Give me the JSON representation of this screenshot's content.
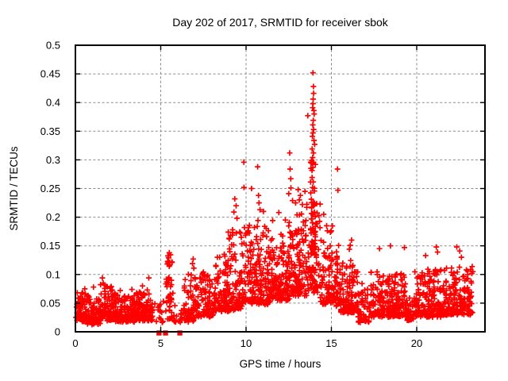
{
  "title": "Day 202 of 2017, SRMTID for receiver sbok",
  "chart_data": {
    "type": "scatter",
    "title": "Day 202 of 2017, SRMTID for receiver sbok",
    "xlabel": "GPS time / hours",
    "ylabel": "SRMTID / TECUs",
    "xlim": [
      0,
      24
    ],
    "ylim": [
      0,
      0.5
    ],
    "xticks": [
      0,
      5,
      10,
      15,
      20
    ],
    "xtick_labels": [
      "0",
      "5",
      "10",
      "15",
      "20"
    ],
    "yticks": [
      0,
      0.05,
      0.1,
      0.15,
      0.2,
      0.25,
      0.3,
      0.35,
      0.4,
      0.45,
      0.5
    ],
    "ytick_labels": [
      "0",
      "0.05",
      "0.1",
      "0.15",
      "0.2",
      "0.25",
      "0.3",
      "0.35",
      "0.4",
      "0.45",
      "0.5"
    ],
    "grid": true,
    "legend": "none",
    "marker": "plus",
    "marker_color": "#ff0000",
    "grid_color": "#8c8c8c",
    "border_color": "#000000",
    "seed": 1234567,
    "notable_points": [
      [
        13.92,
        0.452
      ],
      [
        13.95,
        0.428
      ],
      [
        13.96,
        0.416
      ],
      [
        13.93,
        0.406
      ],
      [
        13.92,
        0.398
      ],
      [
        13.9,
        0.391
      ],
      [
        13.97,
        0.386
      ],
      [
        13.99,
        0.38
      ],
      [
        13.62,
        0.377
      ],
      [
        13.94,
        0.369
      ],
      [
        13.91,
        0.361
      ],
      [
        13.96,
        0.353
      ],
      [
        13.92,
        0.347
      ],
      [
        13.89,
        0.341
      ],
      [
        13.98,
        0.334
      ],
      [
        14.02,
        0.327
      ],
      [
        13.87,
        0.319
      ],
      [
        13.95,
        0.312
      ],
      [
        13.9,
        0.304
      ],
      [
        13.85,
        0.299
      ],
      [
        14.06,
        0.292
      ],
      [
        13.8,
        0.285
      ],
      [
        9.87,
        0.296
      ],
      [
        9.88,
        0.252
      ],
      [
        10.68,
        0.288
      ],
      [
        10.73,
        0.238
      ],
      [
        10.76,
        0.225
      ],
      [
        10.82,
        0.213
      ],
      [
        10.7,
        0.194
      ],
      [
        11.02,
        0.21
      ],
      [
        12.56,
        0.312
      ],
      [
        12.58,
        0.284
      ],
      [
        12.62,
        0.267
      ],
      [
        12.63,
        0.251
      ],
      [
        12.5,
        0.241
      ],
      [
        12.72,
        0.229
      ],
      [
        15.36,
        0.284
      ],
      [
        15.38,
        0.247
      ],
      [
        9.34,
        0.232
      ],
      [
        9.42,
        0.22
      ],
      [
        9.29,
        0.209
      ],
      [
        9.47,
        0.198
      ],
      [
        13.05,
        0.248
      ],
      [
        13.12,
        0.23
      ],
      [
        13.18,
        0.238
      ],
      [
        13.3,
        0.222
      ],
      [
        13.45,
        0.245
      ],
      [
        12.9,
        0.225
      ],
      [
        11.92,
        0.208
      ],
      [
        11.56,
        0.194
      ],
      [
        10.32,
        0.25
      ],
      [
        12.3,
        0.195
      ],
      [
        14.55,
        0.205
      ],
      [
        14.72,
        0.185
      ],
      [
        1.58,
        0.094
      ],
      [
        1.63,
        0.085
      ],
      [
        2.1,
        0.079
      ],
      [
        4.3,
        0.094
      ],
      [
        3.93,
        0.08
      ],
      [
        0.55,
        0.075
      ],
      [
        1.06,
        0.078
      ],
      [
        2.63,
        0.072
      ],
      [
        3.31,
        0.074
      ],
      [
        5.5,
        0.138
      ],
      [
        5.46,
        0.129
      ],
      [
        5.53,
        0.121
      ],
      [
        6.9,
        0.127
      ],
      [
        6.86,
        0.119
      ],
      [
        6.94,
        0.111
      ],
      [
        7.46,
        0.102
      ],
      [
        7.76,
        0.098
      ],
      [
        8.32,
        0.13
      ],
      [
        8.76,
        0.132
      ],
      [
        9.02,
        0.162
      ],
      [
        9.21,
        0.178
      ],
      [
        8.96,
        0.174
      ],
      [
        16.18,
        0.16
      ],
      [
        16.1,
        0.151
      ],
      [
        16.05,
        0.144
      ],
      [
        17.82,
        0.145
      ],
      [
        18.46,
        0.15
      ],
      [
        19.28,
        0.147
      ],
      [
        20.52,
        0.133
      ],
      [
        21.15,
        0.148
      ],
      [
        21.22,
        0.139
      ],
      [
        22.35,
        0.148
      ],
      [
        22.52,
        0.141
      ],
      [
        22.62,
        0.13
      ]
    ],
    "zero_square_markers_t": [
      4.9,
      5.28,
      6.12
    ],
    "density_segments": [
      {
        "t0": 0.03,
        "t1": 0.7,
        "n": 85,
        "lo": 0.02,
        "hi": 0.068,
        "pw": 2.2
      },
      {
        "t0": 0.7,
        "t1": 1.45,
        "n": 90,
        "lo": 0.015,
        "hi": 0.062,
        "pw": 2.2
      },
      {
        "t0": 1.45,
        "t1": 2.35,
        "n": 110,
        "lo": 0.022,
        "hi": 0.08,
        "pw": 2.4
      },
      {
        "t0": 2.35,
        "t1": 3.45,
        "n": 130,
        "lo": 0.02,
        "hi": 0.065,
        "pw": 2.2
      },
      {
        "t0": 3.45,
        "t1": 4.55,
        "n": 135,
        "lo": 0.022,
        "hi": 0.072,
        "pw": 2.4
      },
      {
        "t0": 4.55,
        "t1": 5.18,
        "n": 14,
        "lo": 0.018,
        "hi": 0.052,
        "pw": 1.8
      },
      {
        "t0": 5.28,
        "t1": 5.72,
        "n": 42,
        "lo": 0.022,
        "hi": 0.135,
        "pw": 1.4
      },
      {
        "t0": 5.75,
        "t1": 6.35,
        "n": 16,
        "lo": 0.013,
        "hi": 0.05,
        "pw": 1.8
      },
      {
        "t0": 6.35,
        "t1": 7.1,
        "n": 70,
        "lo": 0.02,
        "hi": 0.1,
        "pw": 2.2
      },
      {
        "t0": 7.1,
        "t1": 8.1,
        "n": 95,
        "lo": 0.028,
        "hi": 0.105,
        "pw": 2.3
      },
      {
        "t0": 8.1,
        "t1": 9.0,
        "n": 100,
        "lo": 0.038,
        "hi": 0.135,
        "pw": 2.1
      },
      {
        "t0": 9.0,
        "t1": 9.8,
        "n": 90,
        "lo": 0.04,
        "hi": 0.175,
        "pw": 2.1
      },
      {
        "t0": 9.8,
        "t1": 10.2,
        "n": 42,
        "lo": 0.05,
        "hi": 0.19,
        "pw": 1.8
      },
      {
        "t0": 10.2,
        "t1": 11.45,
        "n": 155,
        "lo": 0.05,
        "hi": 0.185,
        "pw": 2.0
      },
      {
        "t0": 11.45,
        "t1": 12.45,
        "n": 130,
        "lo": 0.055,
        "hi": 0.17,
        "pw": 2.0
      },
      {
        "t0": 12.45,
        "t1": 12.8,
        "n": 45,
        "lo": 0.06,
        "hi": 0.21,
        "pw": 1.5
      },
      {
        "t0": 12.8,
        "t1": 13.55,
        "n": 100,
        "lo": 0.065,
        "hi": 0.205,
        "pw": 1.9
      },
      {
        "t0": 13.55,
        "t1": 14.35,
        "n": 75,
        "lo": 0.07,
        "hi": 0.23,
        "pw": 1.8
      },
      {
        "t0": 13.78,
        "t1": 14.12,
        "n": 60,
        "lo": 0.1,
        "hi": 0.305,
        "pw": 1.2
      },
      {
        "t0": 14.35,
        "t1": 15.12,
        "n": 80,
        "lo": 0.05,
        "hi": 0.19,
        "pw": 2.1
      },
      {
        "t0": 15.12,
        "t1": 15.55,
        "n": 45,
        "lo": 0.045,
        "hi": 0.155,
        "pw": 1.7
      },
      {
        "t0": 15.55,
        "t1": 16.55,
        "n": 120,
        "lo": 0.035,
        "hi": 0.125,
        "pw": 2.3
      },
      {
        "t0": 16.55,
        "t1": 17.3,
        "n": 55,
        "lo": 0.018,
        "hi": 0.085,
        "pw": 2.1
      },
      {
        "t0": 17.3,
        "t1": 19.35,
        "n": 230,
        "lo": 0.028,
        "hi": 0.105,
        "pw": 2.3
      },
      {
        "t0": 19.35,
        "t1": 19.8,
        "n": 32,
        "lo": 0.02,
        "hi": 0.06,
        "pw": 2.0
      },
      {
        "t0": 19.8,
        "t1": 21.5,
        "n": 175,
        "lo": 0.028,
        "hi": 0.11,
        "pw": 2.3
      },
      {
        "t0": 21.5,
        "t1": 23.3,
        "n": 195,
        "lo": 0.032,
        "hi": 0.115,
        "pw": 2.3
      }
    ]
  }
}
